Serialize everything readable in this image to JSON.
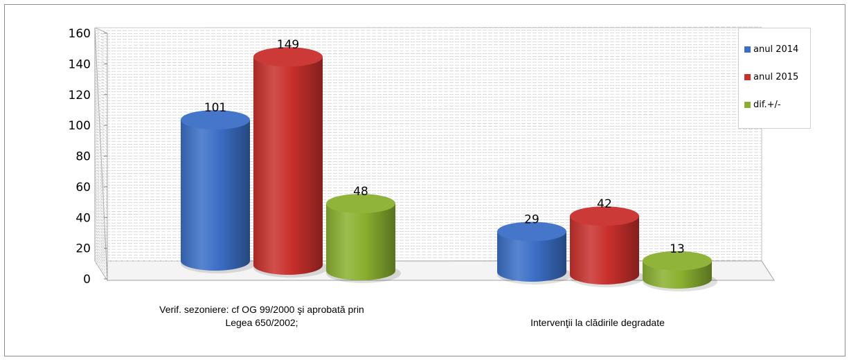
{
  "chart_data": {
    "type": "bar",
    "categories": [
      [
        "Verif. sezoniere: cf OG 99/2000 şi aprobată prin",
        "Legea 650/2002;"
      ],
      [
        "Intervenţii la clădirile degradate"
      ]
    ],
    "series": [
      {
        "name": "anul 2014",
        "values": [
          101,
          29
        ],
        "color": "#3b6fc6"
      },
      {
        "name": "anul 2015",
        "values": [
          149,
          42
        ],
        "color": "#c9302c"
      },
      {
        "name": "dif.+/-",
        "values": [
          48,
          13
        ],
        "color": "#8ab02f"
      }
    ],
    "ylim": [
      0,
      160
    ],
    "yticks": [
      "0",
      "20",
      "40",
      "60",
      "80",
      "100",
      "120",
      "140",
      "160"
    ],
    "grid": true,
    "legend_position": "right",
    "style": "3d-cylinder"
  }
}
